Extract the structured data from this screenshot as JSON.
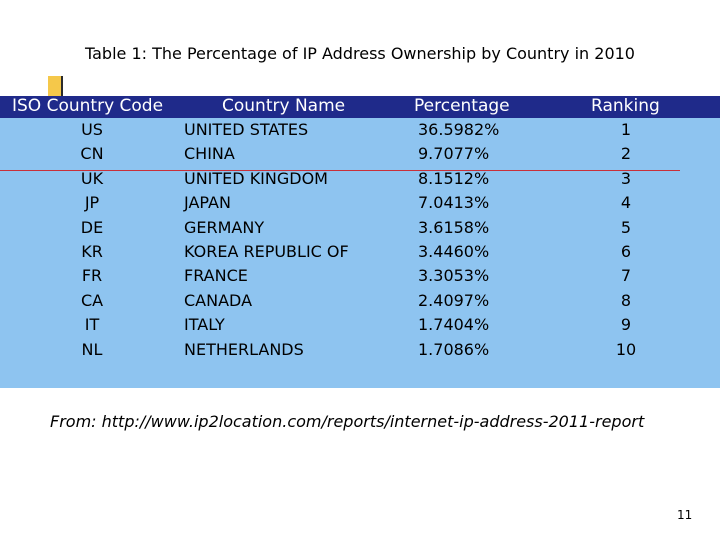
{
  "title": "Table 1: The Percentage of IP Address Ownership by Country in 2010",
  "table": {
    "headers": {
      "code": "ISO Country Code",
      "name": "Country Name",
      "percentage": "Percentage",
      "ranking": "Ranking"
    },
    "rows": [
      {
        "code": "US",
        "name": "UNITED STATES",
        "percentage": "36.5982%",
        "ranking": "1"
      },
      {
        "code": "CN",
        "name": "CHINA",
        "percentage": "9.7077%",
        "ranking": "2"
      },
      {
        "code": "UK",
        "name": "UNITED KINGDOM",
        "percentage": "8.1512%",
        "ranking": "3"
      },
      {
        "code": "JP",
        "name": "JAPAN",
        "percentage": "7.0413%",
        "ranking": "4"
      },
      {
        "code": "DE",
        "name": "GERMANY",
        "percentage": "3.6158%",
        "ranking": "5"
      },
      {
        "code": "KR",
        "name": "KOREA REPUBLIC OF",
        "percentage": "3.4460%",
        "ranking": "6"
      },
      {
        "code": "FR",
        "name": "FRANCE",
        "percentage": "3.3053%",
        "ranking": "7"
      },
      {
        "code": "CA",
        "name": "CANADA",
        "percentage": "2.4097%",
        "ranking": "8"
      },
      {
        "code": "IT",
        "name": "ITALY",
        "percentage": "1.7404%",
        "ranking": "9"
      },
      {
        "code": "NL",
        "name": "NETHERLANDS",
        "percentage": "1.7086%",
        "ranking": "10"
      }
    ]
  },
  "source": "From: http://www.ip2location.com/reports/internet-ip-address-2011-report",
  "page_number": "11",
  "colors": {
    "header_bg": "#1f2a8a",
    "table_bg": "#8ec4f0",
    "accent_yellow": "#f5c84a",
    "divider_red": "#c8303a"
  }
}
